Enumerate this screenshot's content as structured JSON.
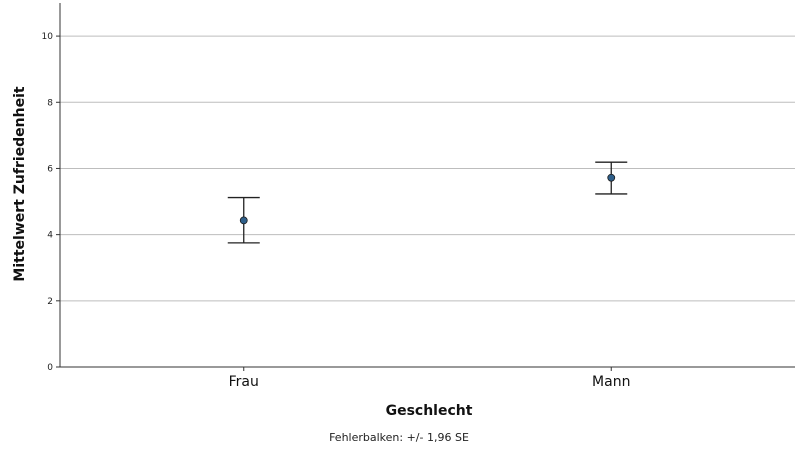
{
  "chart_data": {
    "type": "scatter",
    "subtype": "error-bar",
    "categories": [
      "Frau",
      "Mann"
    ],
    "series": [
      {
        "means": [
          4.43,
          5.72
        ],
        "lower": [
          3.75,
          5.23
        ],
        "upper": [
          5.12,
          6.19
        ]
      }
    ],
    "xlabel": "Geschlecht",
    "ylabel": "Mittelwert Zufriedenheit",
    "ylim": [
      0,
      11
    ],
    "yticks": [
      0,
      2,
      4,
      6,
      8,
      10
    ],
    "grid": true,
    "footnote": "Fehlerbalken: +/- 1,96 SE",
    "colors": {
      "point": "#2f5f8a",
      "point_stroke": "#1a1a1a",
      "errorbar": "#222222",
      "grid": "#bdbdbd",
      "axis": "#333333"
    }
  }
}
